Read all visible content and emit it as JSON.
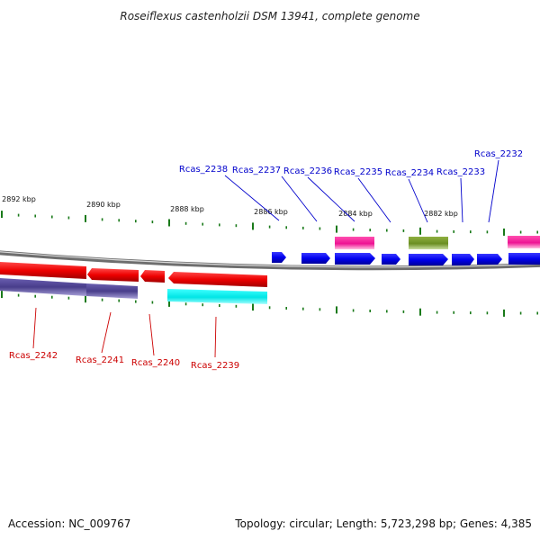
{
  "title": "Roseiflexus castenholzii DSM 13941, complete genome",
  "footer": {
    "accession": "Accession: NC_009767",
    "summary": "Topology: circular; Length: 5,723,298 bp; Genes: 4,385"
  },
  "colors": {
    "forward_label": "#0000cc",
    "reverse_label": "#cc0000",
    "tick": "#1a7a1a",
    "backbone": "#7f7f7f"
  },
  "ticks_top": [
    "2892 kbp",
    "2890 kbp",
    "2888 kbp",
    "2886 kbp",
    "2884 kbp",
    "2882 kbp"
  ],
  "genes_forward": [
    "Rcas_2238",
    "Rcas_2237",
    "Rcas_2236",
    "Rcas_2235",
    "Rcas_2234",
    "Rcas_2233",
    "Rcas_2232"
  ],
  "genes_reverse": [
    "Rcas_2242",
    "Rcas_2241",
    "Rcas_2240",
    "Rcas_2239"
  ],
  "feature_colors": {
    "cds": "#0000ee",
    "cds_reverse": "#ee0000",
    "rna_magenta": "#ee1493",
    "rna_olive": "#6b8e23",
    "feature_slate": "#483d8b",
    "feature_cyan": "#00e5e5"
  }
}
